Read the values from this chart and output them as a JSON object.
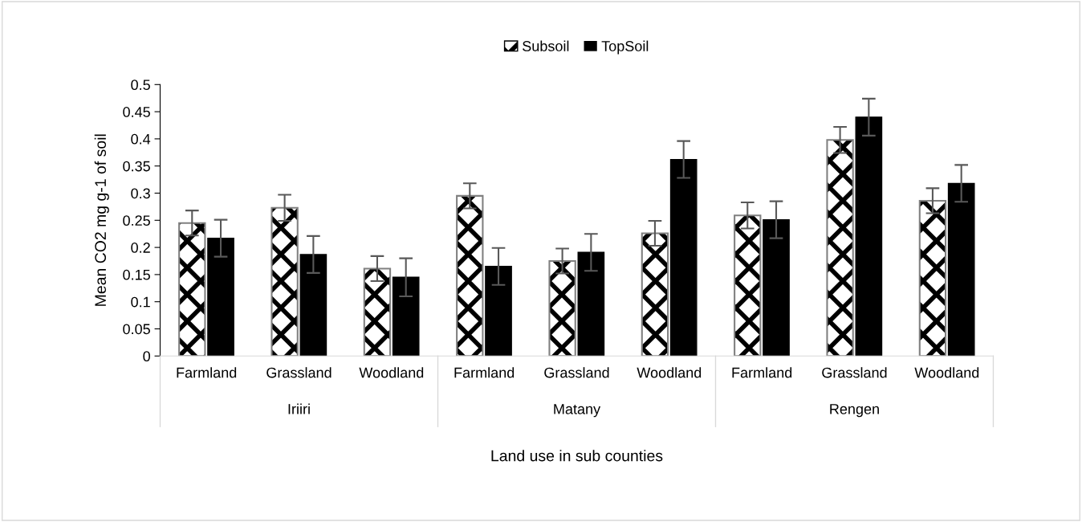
{
  "chart_data": {
    "type": "bar",
    "categories": [
      "Farmland",
      "Grassland",
      "Woodland",
      "Farmland",
      "Grassland",
      "Woodland",
      "Farmland",
      "Grassland",
      "Woodland"
    ],
    "annotations": [
      "Iriiri",
      "Matany",
      "Rengen"
    ],
    "xlabel": "Land use in sub counties",
    "ylabel": "Mean CO2 mg g-1 of soil",
    "series": [
      {
        "name": "Subsoil",
        "color": "#ffffff",
        "values": [
          0.245,
          0.273,
          0.161,
          0.295,
          0.175,
          0.226,
          0.259,
          0.398,
          0.286
        ],
        "errors": [
          0.023,
          0.024,
          0.023,
          0.023,
          0.023,
          0.023,
          0.024,
          0.024,
          0.023
        ]
      },
      {
        "name": "TopSoil",
        "color": "#000000",
        "values": [
          0.217,
          0.187,
          0.145,
          0.165,
          0.191,
          0.362,
          0.251,
          0.44,
          0.318
        ],
        "errors": [
          0.034,
          0.034,
          0.035,
          0.034,
          0.034,
          0.034,
          0.034,
          0.034,
          0.034
        ]
      }
    ],
    "ylim": [
      0,
      0.5
    ],
    "yticks": [
      0,
      0.05,
      0.1,
      0.15,
      0.2,
      0.25,
      0.3,
      0.35,
      0.4,
      0.45,
      0.5
    ],
    "grid": false,
    "legend": "top"
  }
}
